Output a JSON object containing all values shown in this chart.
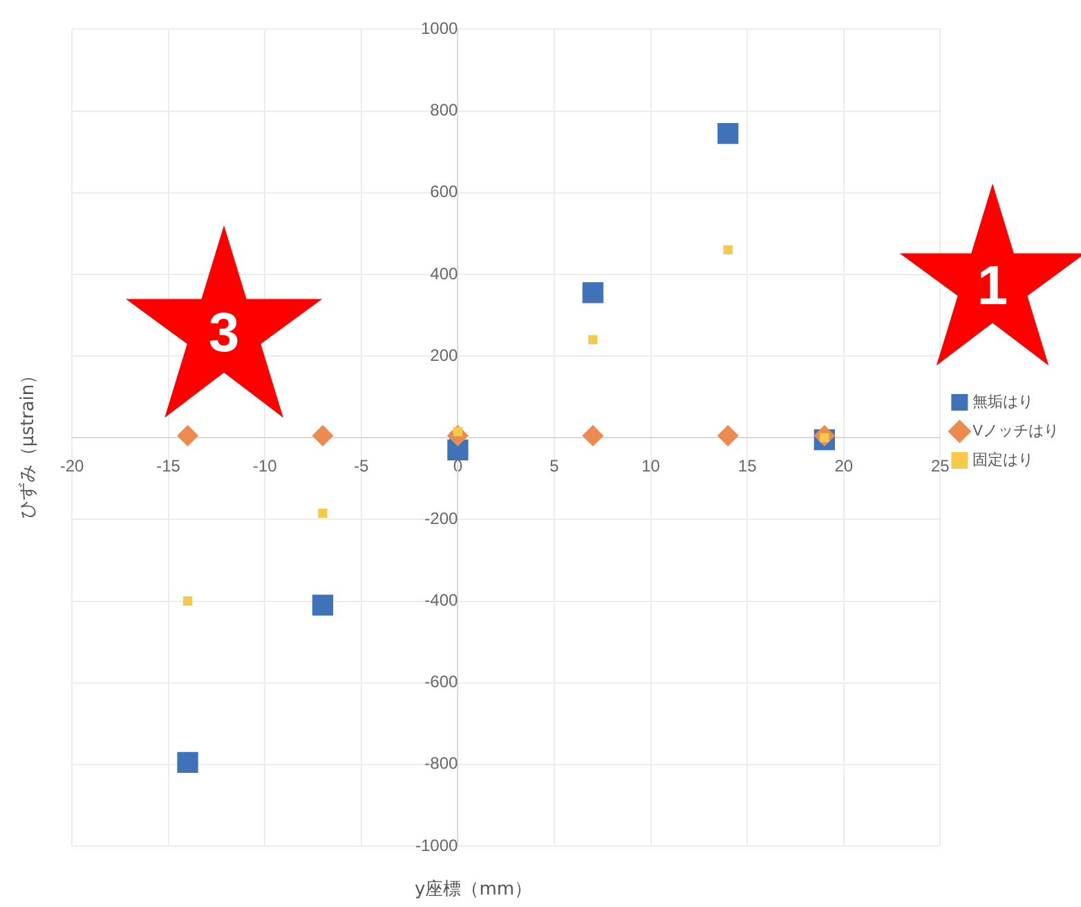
{
  "chart_data": {
    "type": "scatter",
    "xlabel": "y座標（mm）",
    "ylabel": "ひずみ（μstrain）",
    "annotations": [
      "3",
      "1"
    ],
    "series": [
      {
        "name": "無垢はり",
        "color": "#3f72b8",
        "marker": "square",
        "x": [
          -14,
          -7,
          0,
          7,
          14,
          19
        ],
        "values": [
          -795,
          -410,
          -30,
          355,
          745,
          -5
        ]
      },
      {
        "name": "Vノッチはり",
        "color": "#ed8a4f",
        "marker": "diamond",
        "x": [
          -14,
          -7,
          0,
          7,
          14,
          19
        ],
        "values": [
          5,
          5,
          5,
          5,
          5,
          5
        ]
      },
      {
        "name": "固定はり",
        "color": "#f5c94a",
        "marker": "square",
        "x": [
          -14,
          -7,
          0,
          7,
          14,
          19
        ],
        "values": [
          -400,
          -185,
          15,
          240,
          460,
          0
        ]
      }
    ],
    "xlim": [
      -20,
      25
    ],
    "xticks": [
      -20,
      -15,
      -10,
      -5,
      0,
      5,
      10,
      15,
      20,
      25
    ],
    "ylim": [
      -1000,
      1000
    ],
    "yticks": [
      -1000,
      -800,
      -600,
      -400,
      -200,
      0,
      200,
      400,
      600,
      800,
      1000
    ],
    "grid": true,
    "legend": "right"
  }
}
